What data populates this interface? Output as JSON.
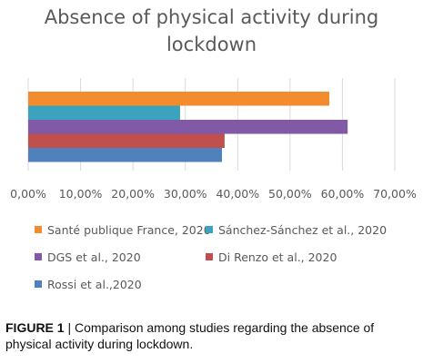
{
  "chart_data": {
    "type": "bar",
    "orientation": "horizontal",
    "title": "Absence of physical activity during lockdown",
    "series": [
      {
        "name": "Santé publique France, 2020",
        "value": 57.5,
        "color": "#F28C2E"
      },
      {
        "name": "Sánchez-Sánchez et al., 2020",
        "value": 29.0,
        "color": "#3BA3BE"
      },
      {
        "name": "DGS et al., 2020",
        "value": 61.0,
        "color": "#8159A6"
      },
      {
        "name": "Di Renzo et al., 2020",
        "value": 37.5,
        "color": "#C0504D"
      },
      {
        "name": "Rossi et al.,2020",
        "value": 37.0,
        "color": "#4F81BD"
      }
    ],
    "xlim": [
      0,
      70
    ],
    "xticks": [
      "0,00%",
      "10,00%",
      "20,00%",
      "30,00%",
      "40,00%",
      "50,00%",
      "60,00%",
      "70,00%"
    ],
    "grid": true,
    "legend_position": "bottom"
  },
  "caption": {
    "label": "FIGURE 1",
    "separator": " | ",
    "text": "Comparison among studies regarding the absence of physical activity during lockdown."
  }
}
